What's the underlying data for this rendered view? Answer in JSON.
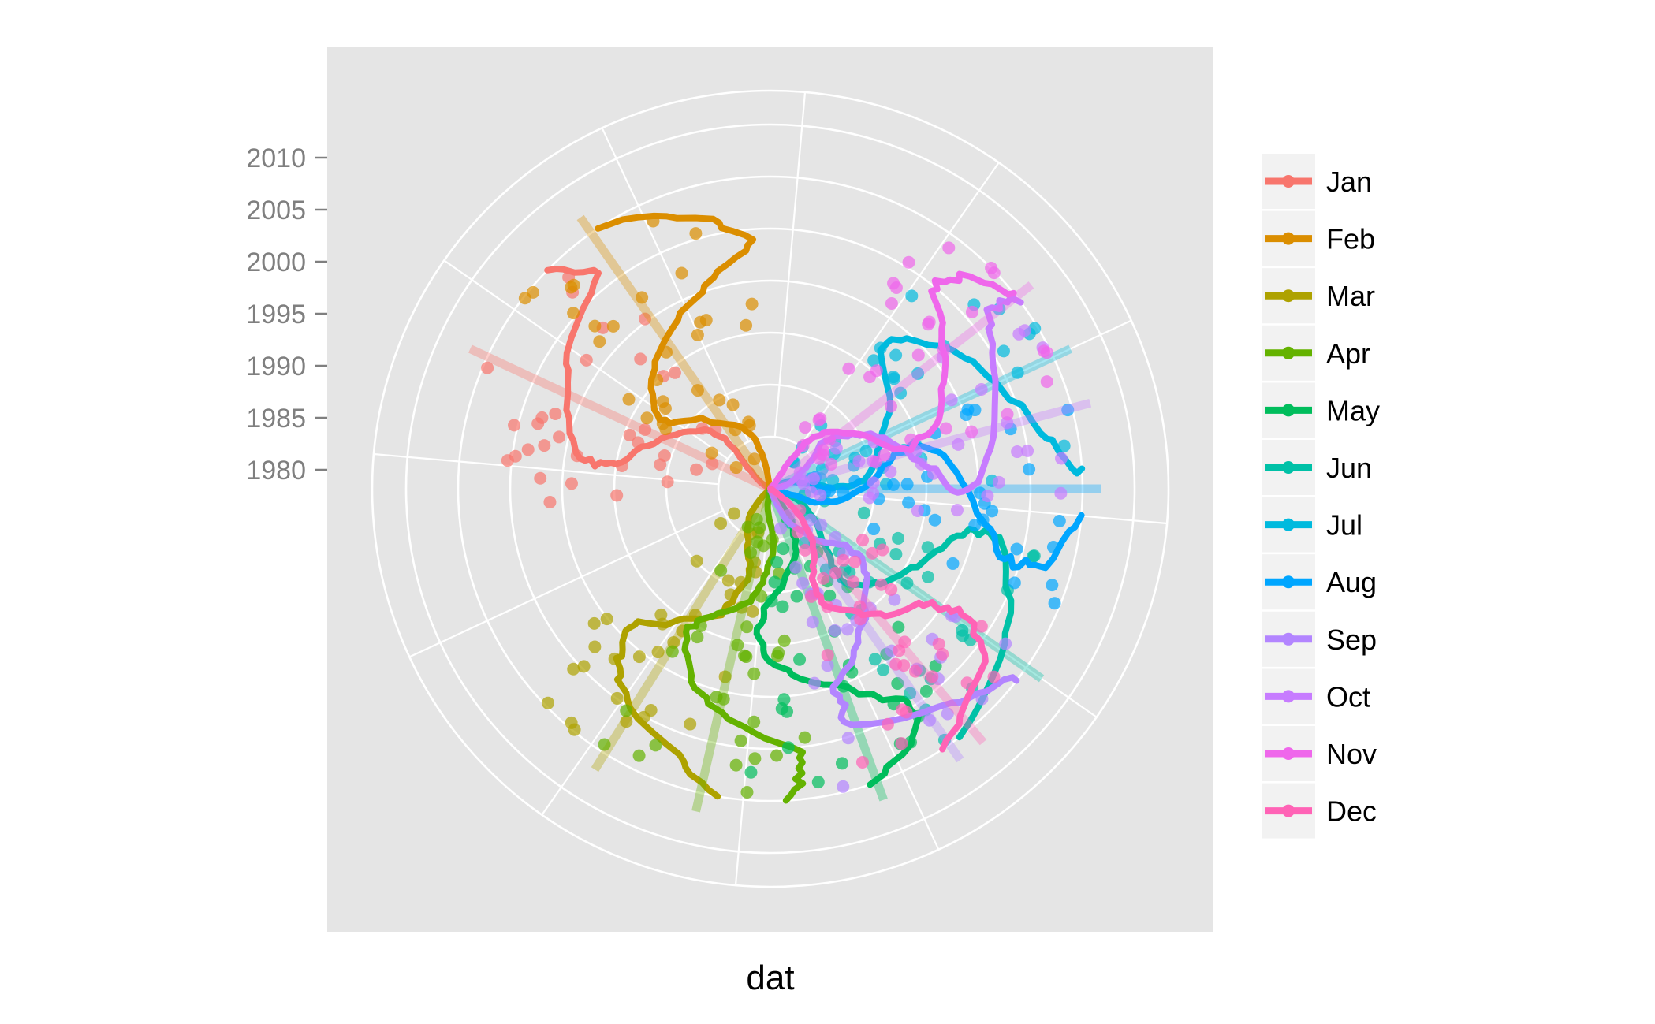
{
  "chart_data": {
    "type": "line",
    "coord": "polar",
    "xlabel": "dat",
    "ylabel": "",
    "y_ticks": [
      "2010",
      "2005",
      "2000",
      "1995",
      "1990",
      "1985",
      "1980"
    ],
    "grid": true,
    "legend_position": "right",
    "series": [
      {
        "name": "Jan",
        "color": "#F8766D"
      },
      {
        "name": "Feb",
        "color": "#DB8E00"
      },
      {
        "name": "Mar",
        "color": "#AEA200"
      },
      {
        "name": "Apr",
        "color": "#64B200"
      },
      {
        "name": "May",
        "color": "#00BD5C"
      },
      {
        "name": "Jun",
        "color": "#00C1A7"
      },
      {
        "name": "Jul",
        "color": "#00BADE"
      },
      {
        "name": "Aug",
        "color": "#00A6FF"
      },
      {
        "name": "Sep",
        "color": "#B385FF"
      },
      {
        "name": "Oct",
        "color": "#C77CFF"
      },
      {
        "name": "Nov",
        "color": "#EF67EB"
      },
      {
        "name": "Dec",
        "color": "#FF63B6"
      }
    ]
  }
}
